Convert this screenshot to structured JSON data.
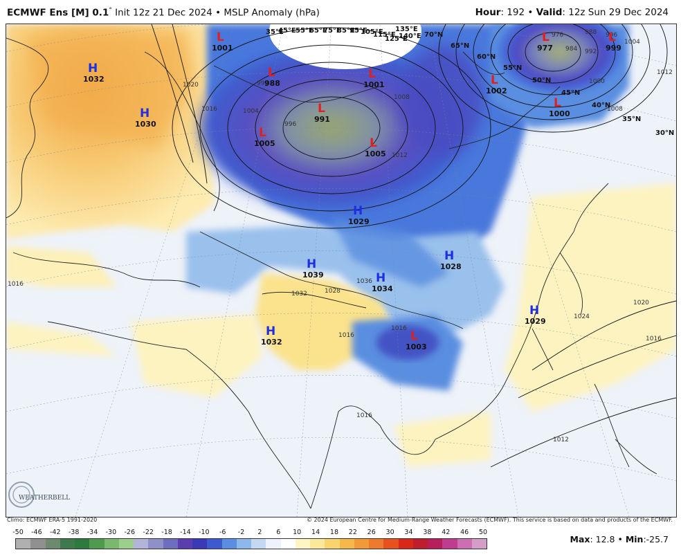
{
  "header": {
    "model": "ECMWF Ens [M] 0.1",
    "degree_mark": "°",
    "init": " Init 12z 21 Dec 2024",
    "bullet": "•",
    "product": "MSLP Anomaly (hPa)",
    "hour_label": "Hour",
    "hour_value": ": 192",
    "valid_label": "Valid",
    "valid_value": ": 12z Sun 29 Dec 2024"
  },
  "pressure_centers": [
    {
      "type": "H",
      "value": "1032"
    },
    {
      "type": "H",
      "value": "1030"
    },
    {
      "type": "L",
      "value": "1001"
    },
    {
      "type": "L",
      "value": "988"
    },
    {
      "type": "L",
      "value": "991"
    },
    {
      "type": "L",
      "value": "1005"
    },
    {
      "type": "L",
      "value": "1005"
    },
    {
      "type": "L",
      "value": "1001"
    },
    {
      "type": "L",
      "value": "977"
    },
    {
      "type": "L",
      "value": "999"
    },
    {
      "type": "L",
      "value": "1002"
    },
    {
      "type": "L",
      "value": "1000"
    },
    {
      "type": "H",
      "value": "1029"
    },
    {
      "type": "H",
      "value": "1039"
    },
    {
      "type": "H",
      "value": "1034"
    },
    {
      "type": "H",
      "value": "1028"
    },
    {
      "type": "H",
      "value": "1029"
    },
    {
      "type": "H",
      "value": "1032"
    },
    {
      "type": "L",
      "value": "1003"
    }
  ],
  "latitude_labels": [
    "70°N",
    "65°N",
    "60°N",
    "55°N",
    "50°N",
    "45°N",
    "40°N",
    "35°N",
    "30°N"
  ],
  "longitude_labels": [
    "35°E",
    "45°E",
    "55°E",
    "65°E",
    "75°E",
    "85°E",
    "95°E",
    "105°E",
    "115°E",
    "125°E",
    "135°E",
    "140°E"
  ],
  "isobar_labels": [
    "1020",
    "1016",
    "1008",
    "1004",
    "996",
    "992",
    "1012",
    "1024",
    "1020",
    "1016",
    "1012",
    "1016",
    "976",
    "984",
    "988",
    "992",
    "996",
    "1000",
    "1004",
    "1008",
    "1012",
    "1036",
    "1032",
    "1028",
    "1016",
    "1016",
    "1016"
  ],
  "footer": {
    "climo": "Climo: ECMWF ERA-5 1991-2020",
    "copyright": "© 2024 European Centre for Medium-Range Weather Forecasts (ECMWF). This service is based on data and products of the ECMWF.",
    "max_label": "Max",
    "max_value": ": 12.8",
    "bullet": "•",
    "min_label": "Min",
    "min_value": ":-25.7",
    "logo_text": "WEATHERBELL"
  },
  "colorbar": {
    "ticks": [
      "-50",
      "-46",
      "-42",
      "-38",
      "-34",
      "-30",
      "-26",
      "-22",
      "-18",
      "-14",
      "-10",
      "-6",
      "-2",
      "2",
      "6",
      "10",
      "14",
      "18",
      "22",
      "26",
      "30",
      "34",
      "38",
      "42",
      "46",
      "50"
    ],
    "colors": [
      "#b0b0b0",
      "#909090",
      "#6e8a6e",
      "#3e7a4e",
      "#2e7a3e",
      "#4e9a4e",
      "#7ab86e",
      "#9ccf8e",
      "#b4b4d8",
      "#9090c8",
      "#6e6ec0",
      "#5a3eb0",
      "#3a3ab8",
      "#3e5ad0",
      "#5a8ee0",
      "#8eb8ec",
      "#c4d8f4",
      "#eef2fa",
      "#ffffff",
      "#fdf6c4",
      "#fce89a",
      "#f9d46e",
      "#f6b84a",
      "#f29a3a",
      "#ef7a2e",
      "#e8501e",
      "#d8281a",
      "#c01e2e",
      "#b81e5a",
      "#c03c8e",
      "#cc6eb0",
      "#d49ec8"
    ]
  },
  "colors": {
    "high": "#1f2fe0",
    "low": "#e01f1f"
  }
}
